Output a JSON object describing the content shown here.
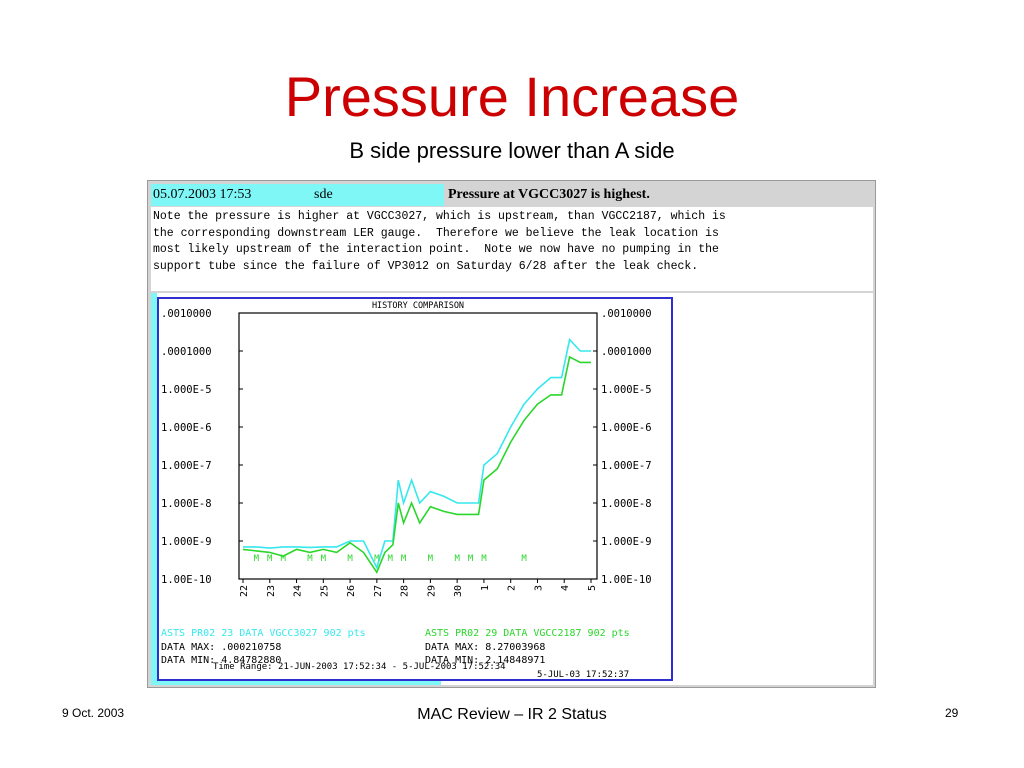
{
  "slide": {
    "title": "Pressure Increase",
    "subtitle": "B side pressure lower than A side"
  },
  "screenshot": {
    "header": {
      "timestamp": "05.07.2003 17:53",
      "user": "sde",
      "headline": "Pressure at VGCC3027 is highest."
    },
    "note_lines": [
      "Note the pressure is higher at VGCC3027, which is upstream, than VGCC2187, which is",
      "the corresponding downstream LER gauge.  Therefore we believe the leak location is",
      "most likely upstream of the interaction point.  Note we now have no pumping in the",
      "support tube since the failure of VP3012 on Saturday 6/28 after the leak check."
    ],
    "colors": {
      "header_cyan": "#7ff7f7",
      "frame_blue": "#2f2fd0",
      "series_cyan": "#36e8ee",
      "series_green": "#2bd62b",
      "title_red": "#cc0000"
    }
  },
  "chart_data": {
    "type": "line",
    "title": "HISTORY COMPARISON",
    "y_scale": "log",
    "ylim": [
      1e-10,
      0.001
    ],
    "y_tick_labels": [
      ".0010000",
      ".0001000",
      "1.000E-5",
      "1.000E-6",
      "1.000E-7",
      "1.000E-8",
      "1.000E-9",
      "1.00E-10"
    ],
    "x_tick_labels": [
      "22",
      "23",
      "24",
      "25",
      "26",
      "27",
      "28",
      "29",
      "30",
      "1",
      "2",
      "3",
      "4",
      "5"
    ],
    "x_range": [
      22,
      35
    ],
    "series": [
      {
        "name": "ASTS PR02 23 DATA VGCC3027 902 pts",
        "color": "#36e8ee",
        "x": [
          22.0,
          22.5,
          23.0,
          23.5,
          24.0,
          24.5,
          25.0,
          25.5,
          26.0,
          26.5,
          27.0,
          27.3,
          27.6,
          27.8,
          28.0,
          28.3,
          28.6,
          29.0,
          29.5,
          30.0,
          30.8,
          31.0,
          31.5,
          32.0,
          32.5,
          33.0,
          33.5,
          33.9,
          34.2,
          34.6,
          35.0
        ],
        "y": [
          7e-10,
          7e-10,
          6.5e-10,
          7e-10,
          7e-10,
          6.8e-10,
          7e-10,
          7e-10,
          1e-09,
          1e-09,
          2e-10,
          1e-09,
          1e-09,
          4e-08,
          1e-08,
          4e-08,
          1e-08,
          2e-08,
          1.5e-08,
          1e-08,
          1e-08,
          1e-07,
          2e-07,
          1e-06,
          4e-06,
          1e-05,
          2e-05,
          2e-05,
          0.0002,
          0.0001,
          0.0001
        ]
      },
      {
        "name": "ASTS PR02 29 DATA VGCC2187 902 pts",
        "color": "#2bd62b",
        "x": [
          22.0,
          22.5,
          23.0,
          23.5,
          24.0,
          24.5,
          25.0,
          25.5,
          26.0,
          26.5,
          27.0,
          27.3,
          27.6,
          27.8,
          28.0,
          28.3,
          28.6,
          29.0,
          29.5,
          30.0,
          30.8,
          31.0,
          31.5,
          32.0,
          32.5,
          33.0,
          33.5,
          33.9,
          34.2,
          34.6,
          35.0
        ],
        "y": [
          6e-10,
          5.5e-10,
          5e-10,
          4e-10,
          6e-10,
          5e-10,
          6e-10,
          5e-10,
          9e-10,
          5e-10,
          1.5e-10,
          5e-10,
          8e-10,
          1e-08,
          3e-09,
          1e-08,
          3e-09,
          8e-09,
          6e-09,
          5e-09,
          5e-09,
          4e-08,
          8e-08,
          4e-07,
          1.5e-06,
          4e-06,
          7e-06,
          7e-06,
          7e-05,
          5e-05,
          5e-05
        ]
      }
    ],
    "marker_letter": "M",
    "marker_x": [
      22.5,
      23.0,
      23.5,
      24.5,
      25.0,
      26.0,
      27.0,
      27.5,
      28.0,
      29.0,
      30.0,
      30.5,
      31.0,
      32.5
    ],
    "info_lines": {
      "series1_header": "ASTS PR02 23 DATA VGCC3027 902 pts",
      "series2_header": "ASTS PR02 29 DATA VGCC2187 902 pts",
      "series1_max": "DATA MAX:  .000210758",
      "series1_min": "DATA MIN:  4.84782880",
      "series2_max": "DATA MAX:  8.27003968",
      "series2_min": "DATA MIN:  2.14848971",
      "time_range": "Time Range: 21-JUN-2003 17:52:34  -  5-JUL-2003 17:52:34",
      "end_time": "5-JUL-03 17:52:37"
    }
  },
  "footer": {
    "date": "9 Oct. 2003",
    "center": "MAC Review – IR 2 Status",
    "page": "29"
  }
}
